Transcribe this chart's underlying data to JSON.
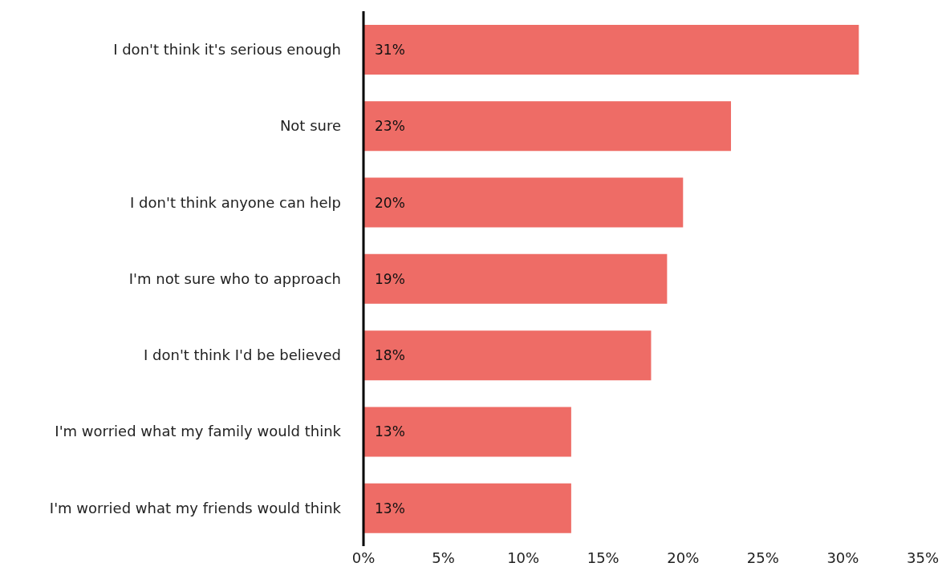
{
  "chart_data": {
    "type": "bar",
    "orientation": "horizontal",
    "categories": [
      "I don't think it's serious enough",
      "Not sure",
      "I don't think anyone can help",
      "I'm not sure who to approach",
      "I don't think I'd be believed",
      "I'm worried what my family would think",
      "I'm worried what my friends would think"
    ],
    "values": [
      31,
      23,
      20,
      19,
      18,
      13,
      13
    ],
    "value_labels": [
      "31%",
      "23%",
      "20%",
      "19%",
      "18%",
      "13%",
      "13%"
    ],
    "color": "#ee6c66",
    "xlim": [
      0,
      35
    ],
    "xticks": [
      {
        "value": 0,
        "label": "0%"
      },
      {
        "value": 5,
        "label": "5%"
      },
      {
        "value": 10,
        "label": "10%"
      },
      {
        "value": 15,
        "label": "15%"
      },
      {
        "value": 20,
        "label": "20%"
      },
      {
        "value": 25,
        "label": "25%"
      },
      {
        "value": 30,
        "label": "30%"
      },
      {
        "value": 35,
        "label": "35%"
      }
    ],
    "grid": false,
    "legend": false
  }
}
